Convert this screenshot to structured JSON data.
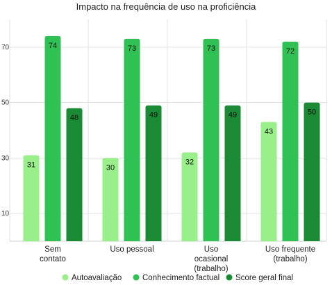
{
  "chart_data": {
    "type": "bar",
    "title": "Impacto na frequência de uso na proficiência",
    "categories": [
      [
        "Sem",
        "contato"
      ],
      [
        "Uso pessoal"
      ],
      [
        "Uso",
        "ocasional",
        "(trabalho)"
      ],
      [
        "Uso frequente",
        "(trabalho)"
      ]
    ],
    "series": [
      {
        "name": "Autoavaliação",
        "color": "#99f08a",
        "values": [
          31,
          30,
          32,
          43
        ]
      },
      {
        "name": "Conhecimento factual",
        "color": "#2fc153",
        "values": [
          74,
          73,
          73,
          72
        ]
      },
      {
        "name": "Score geral final",
        "color": "#1a8a35",
        "values": [
          48,
          49,
          49,
          50
        ]
      }
    ],
    "yticks": [
      10,
      30,
      50,
      70
    ],
    "ylim": [
      0,
      80
    ],
    "grid": true,
    "legend": "bottom"
  }
}
